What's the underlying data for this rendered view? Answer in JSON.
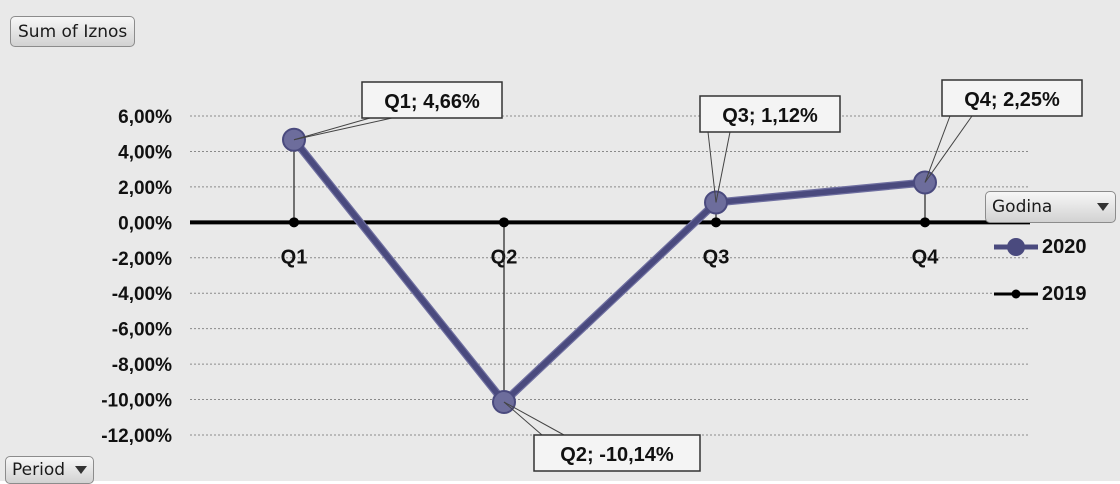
{
  "pivot_fields": {
    "value_field": "Sum of Iznos",
    "axis_field": "Period",
    "legend_field": "Godina"
  },
  "legend": {
    "items": [
      {
        "label": "2020",
        "color": "#4a4a7e"
      },
      {
        "label": "2019",
        "color": "#000000"
      }
    ]
  },
  "chart_data": {
    "type": "line",
    "categories": [
      "Q1",
      "Q2",
      "Q3",
      "Q4"
    ],
    "y_tick_labels": [
      "6,00%",
      "4,00%",
      "2,00%",
      "0,00%",
      "-2,00%",
      "-4,00%",
      "-6,00%",
      "-8,00%",
      "-10,00%",
      "-12,00%"
    ],
    "y_ticks": [
      6,
      4,
      2,
      0,
      -2,
      -4,
      -6,
      -8,
      -10,
      -12
    ],
    "ylim": [
      -12,
      6
    ],
    "grid": true,
    "legend_position": "right",
    "series": [
      {
        "name": "2020",
        "values": [
          4.66,
          -10.14,
          1.12,
          2.25
        ],
        "color": "#4a4a7e",
        "data_labels": [
          "Q1; 4,66%",
          "Q2; -10,14%",
          "Q3; 1,12%",
          "Q4; 2,25%"
        ]
      },
      {
        "name": "2019",
        "values": [
          0,
          0,
          0,
          0
        ],
        "color": "#000000"
      }
    ]
  }
}
